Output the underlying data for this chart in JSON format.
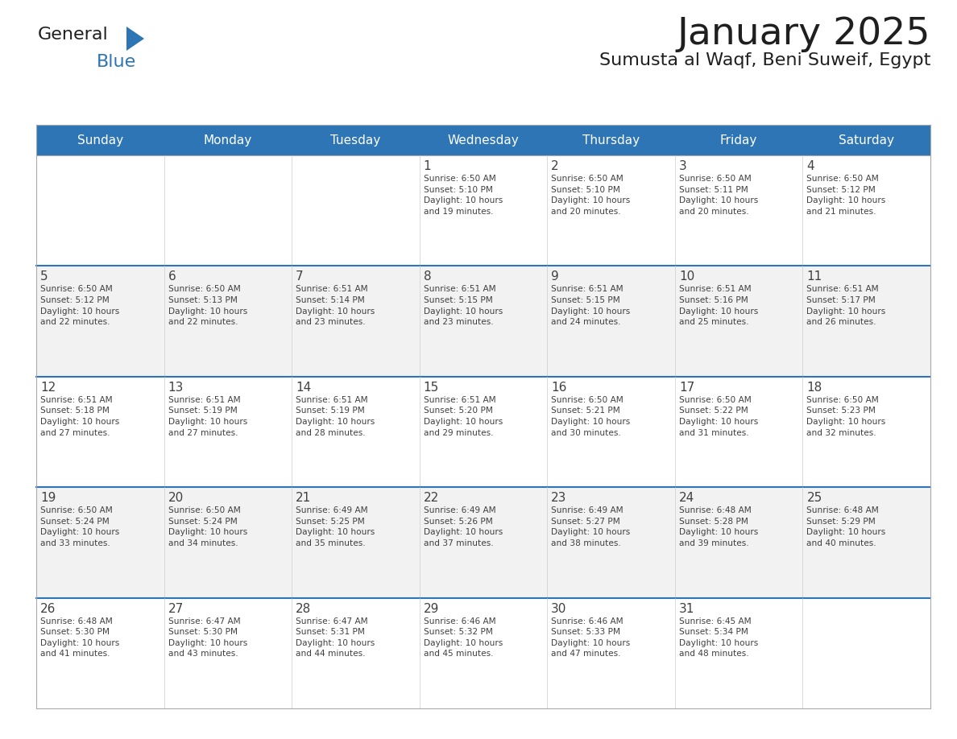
{
  "title": "January 2025",
  "subtitle": "Sumusta al Waqf, Beni Suweif, Egypt",
  "days_of_week": [
    "Sunday",
    "Monday",
    "Tuesday",
    "Wednesday",
    "Thursday",
    "Friday",
    "Saturday"
  ],
  "header_bg": "#2E75B6",
  "header_text": "#FFFFFF",
  "cell_bg_odd": "#FFFFFF",
  "cell_bg_even": "#F2F2F2",
  "cell_border_light": "#CCCCCC",
  "cell_border_blue": "#2E75B6",
  "title_color": "#1F1F1F",
  "text_color": "#404040",
  "logo_general_color": "#1F1F1F",
  "logo_blue_color": "#2E75B6",
  "calendar_data": [
    [
      {
        "day": null,
        "info": null
      },
      {
        "day": null,
        "info": null
      },
      {
        "day": null,
        "info": null
      },
      {
        "day": 1,
        "info": "Sunrise: 6:50 AM\nSunset: 5:10 PM\nDaylight: 10 hours\nand 19 minutes."
      },
      {
        "day": 2,
        "info": "Sunrise: 6:50 AM\nSunset: 5:10 PM\nDaylight: 10 hours\nand 20 minutes."
      },
      {
        "day": 3,
        "info": "Sunrise: 6:50 AM\nSunset: 5:11 PM\nDaylight: 10 hours\nand 20 minutes."
      },
      {
        "day": 4,
        "info": "Sunrise: 6:50 AM\nSunset: 5:12 PM\nDaylight: 10 hours\nand 21 minutes."
      }
    ],
    [
      {
        "day": 5,
        "info": "Sunrise: 6:50 AM\nSunset: 5:12 PM\nDaylight: 10 hours\nand 22 minutes."
      },
      {
        "day": 6,
        "info": "Sunrise: 6:50 AM\nSunset: 5:13 PM\nDaylight: 10 hours\nand 22 minutes."
      },
      {
        "day": 7,
        "info": "Sunrise: 6:51 AM\nSunset: 5:14 PM\nDaylight: 10 hours\nand 23 minutes."
      },
      {
        "day": 8,
        "info": "Sunrise: 6:51 AM\nSunset: 5:15 PM\nDaylight: 10 hours\nand 23 minutes."
      },
      {
        "day": 9,
        "info": "Sunrise: 6:51 AM\nSunset: 5:15 PM\nDaylight: 10 hours\nand 24 minutes."
      },
      {
        "day": 10,
        "info": "Sunrise: 6:51 AM\nSunset: 5:16 PM\nDaylight: 10 hours\nand 25 minutes."
      },
      {
        "day": 11,
        "info": "Sunrise: 6:51 AM\nSunset: 5:17 PM\nDaylight: 10 hours\nand 26 minutes."
      }
    ],
    [
      {
        "day": 12,
        "info": "Sunrise: 6:51 AM\nSunset: 5:18 PM\nDaylight: 10 hours\nand 27 minutes."
      },
      {
        "day": 13,
        "info": "Sunrise: 6:51 AM\nSunset: 5:19 PM\nDaylight: 10 hours\nand 27 minutes."
      },
      {
        "day": 14,
        "info": "Sunrise: 6:51 AM\nSunset: 5:19 PM\nDaylight: 10 hours\nand 28 minutes."
      },
      {
        "day": 15,
        "info": "Sunrise: 6:51 AM\nSunset: 5:20 PM\nDaylight: 10 hours\nand 29 minutes."
      },
      {
        "day": 16,
        "info": "Sunrise: 6:50 AM\nSunset: 5:21 PM\nDaylight: 10 hours\nand 30 minutes."
      },
      {
        "day": 17,
        "info": "Sunrise: 6:50 AM\nSunset: 5:22 PM\nDaylight: 10 hours\nand 31 minutes."
      },
      {
        "day": 18,
        "info": "Sunrise: 6:50 AM\nSunset: 5:23 PM\nDaylight: 10 hours\nand 32 minutes."
      }
    ],
    [
      {
        "day": 19,
        "info": "Sunrise: 6:50 AM\nSunset: 5:24 PM\nDaylight: 10 hours\nand 33 minutes."
      },
      {
        "day": 20,
        "info": "Sunrise: 6:50 AM\nSunset: 5:24 PM\nDaylight: 10 hours\nand 34 minutes."
      },
      {
        "day": 21,
        "info": "Sunrise: 6:49 AM\nSunset: 5:25 PM\nDaylight: 10 hours\nand 35 minutes."
      },
      {
        "day": 22,
        "info": "Sunrise: 6:49 AM\nSunset: 5:26 PM\nDaylight: 10 hours\nand 37 minutes."
      },
      {
        "day": 23,
        "info": "Sunrise: 6:49 AM\nSunset: 5:27 PM\nDaylight: 10 hours\nand 38 minutes."
      },
      {
        "day": 24,
        "info": "Sunrise: 6:48 AM\nSunset: 5:28 PM\nDaylight: 10 hours\nand 39 minutes."
      },
      {
        "day": 25,
        "info": "Sunrise: 6:48 AM\nSunset: 5:29 PM\nDaylight: 10 hours\nand 40 minutes."
      }
    ],
    [
      {
        "day": 26,
        "info": "Sunrise: 6:48 AM\nSunset: 5:30 PM\nDaylight: 10 hours\nand 41 minutes."
      },
      {
        "day": 27,
        "info": "Sunrise: 6:47 AM\nSunset: 5:30 PM\nDaylight: 10 hours\nand 43 minutes."
      },
      {
        "day": 28,
        "info": "Sunrise: 6:47 AM\nSunset: 5:31 PM\nDaylight: 10 hours\nand 44 minutes."
      },
      {
        "day": 29,
        "info": "Sunrise: 6:46 AM\nSunset: 5:32 PM\nDaylight: 10 hours\nand 45 minutes."
      },
      {
        "day": 30,
        "info": "Sunrise: 6:46 AM\nSunset: 5:33 PM\nDaylight: 10 hours\nand 47 minutes."
      },
      {
        "day": 31,
        "info": "Sunrise: 6:45 AM\nSunset: 5:34 PM\nDaylight: 10 hours\nand 48 minutes."
      },
      {
        "day": null,
        "info": null
      }
    ]
  ]
}
